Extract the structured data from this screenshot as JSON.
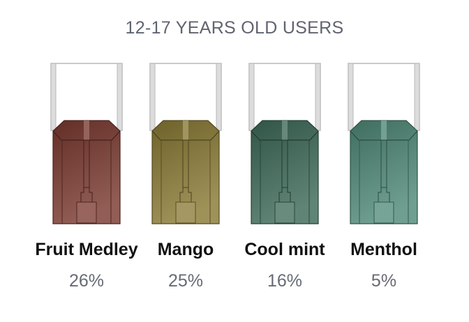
{
  "chart_data": {
    "type": "bar",
    "title": "12-17 YEARS OLD USERS",
    "categories": [
      "Fruit Medley",
      "Mango",
      "Cool mint",
      "Menthol"
    ],
    "values": [
      26,
      25,
      16,
      5
    ],
    "value_labels": [
      "26%",
      "25%",
      "16%",
      "5%"
    ],
    "colors": [
      "#7a3a30",
      "#8a7a35",
      "#3d6a58",
      "#4f8a78"
    ]
  }
}
